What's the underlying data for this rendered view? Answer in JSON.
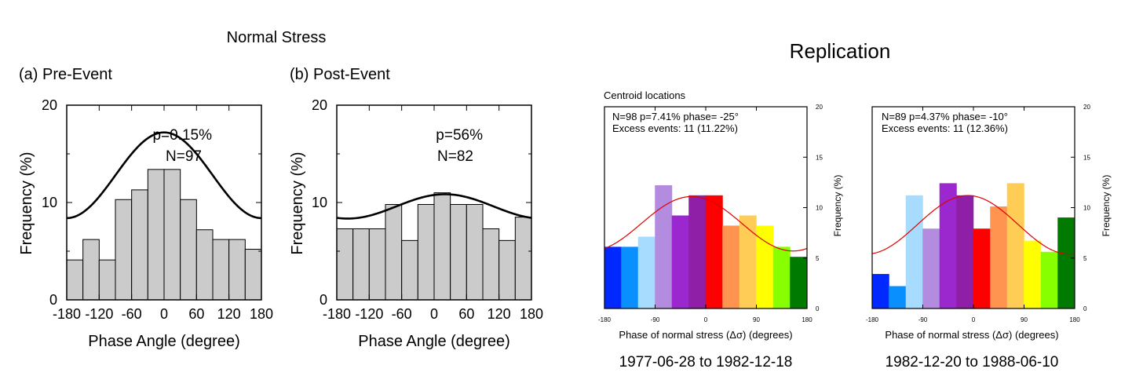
{
  "left_panel": {
    "title": "Normal Stress"
  },
  "right_panel": {
    "title": "Replication",
    "centroid_label": "Centroid locations"
  },
  "chart_data": [
    {
      "id": "a",
      "type": "bar",
      "subtitle": "(a) Pre-Event",
      "xlabel": "Phase Angle (degree)",
      "ylabel": "Frequency (%)",
      "xlim": [
        -180,
        180
      ],
      "ylim": [
        0,
        20
      ],
      "xticks": [
        "-180",
        "-120",
        "-60",
        "0",
        "60",
        "120",
        "180"
      ],
      "yticks": [
        "0",
        "10",
        "20"
      ],
      "bin_edges": [
        -180,
        -150,
        -120,
        -90,
        -60,
        -30,
        0,
        30,
        60,
        90,
        120,
        150,
        180
      ],
      "values": [
        4.1,
        6.2,
        4.1,
        10.3,
        11.3,
        13.4,
        13.4,
        10.3,
        7.2,
        6.2,
        6.2,
        5.2
      ],
      "fit": {
        "mean": 12.8,
        "amplitude": 4.4,
        "phase": 0
      },
      "annotations": [
        "p=0.15%",
        "N=97"
      ],
      "grid": false
    },
    {
      "id": "b",
      "type": "bar",
      "subtitle": "(b) Post-Event",
      "xlabel": "Phase Angle (degree)",
      "ylabel": "Frequency (%)",
      "xlim": [
        -180,
        180
      ],
      "ylim": [
        0,
        20
      ],
      "xticks": [
        "-180",
        "-120",
        "-60",
        "0",
        "60",
        "120",
        "180"
      ],
      "yticks": [
        "0",
        "10",
        "20"
      ],
      "bin_edges": [
        -180,
        -150,
        -120,
        -90,
        -60,
        -30,
        0,
        30,
        60,
        90,
        120,
        150,
        180
      ],
      "values": [
        7.3,
        7.3,
        7.3,
        9.8,
        6.1,
        9.8,
        11.0,
        9.8,
        9.8,
        7.3,
        6.1,
        8.5
      ],
      "fit": {
        "mean": 9.6,
        "amplitude": 1.25,
        "phase": 20
      },
      "annotations": [
        "p=56%",
        "N=82"
      ],
      "grid": false
    },
    {
      "id": "c",
      "type": "bar",
      "xlabel": "Phase of normal stress (Δσ) (degrees)",
      "ylabel": "Frequency (%)",
      "caption": "1977-06-28 to 1982-12-18",
      "annotation_line1": "N=98   p=7.41%   phase= -25°",
      "annotation_line2": "Excess events: 11 (11.22%)",
      "xlim": [
        -180,
        180
      ],
      "ylim": [
        0,
        20
      ],
      "xticks": [
        "-180",
        "-90",
        "0",
        "90",
        "180"
      ],
      "yticks": [
        "0",
        "5",
        "10",
        "15",
        "20"
      ],
      "bin_edges": [
        -180,
        -150,
        -120,
        -90,
        -60,
        -30,
        0,
        30,
        60,
        90,
        120,
        150,
        180
      ],
      "values": [
        6.1,
        6.1,
        7.1,
        12.2,
        9.2,
        11.2,
        11.2,
        8.2,
        9.2,
        8.2,
        6.1,
        5.1
      ],
      "colors": [
        "#0028ff",
        "#0a8fff",
        "#a8dcff",
        "#b38ce0",
        "#9b27cf",
        "#8e1fa6",
        "#ff0000",
        "#ff9450",
        "#ffcc55",
        "#ffff00",
        "#88ff00",
        "#007a00"
      ],
      "fit": {
        "mean": 8.4,
        "amplitude": 2.7,
        "phase": -25
      },
      "fit_color": "#e00000",
      "grid": false
    },
    {
      "id": "d",
      "type": "bar",
      "xlabel": "Phase of normal stress (Δσ) (degrees)",
      "ylabel": "Frequency (%)",
      "caption": "1982-12-20 to 1988-06-10",
      "annotation_line1": "N=89   p=4.37%   phase= -10°",
      "annotation_line2": "Excess events: 11 (12.36%)",
      "xlim": [
        -180,
        180
      ],
      "ylim": [
        0,
        20
      ],
      "xticks": [
        "-180",
        "-90",
        "0",
        "90",
        "180"
      ],
      "yticks": [
        "0",
        "5",
        "10",
        "15",
        "20"
      ],
      "bin_edges": [
        -180,
        -150,
        -120,
        -90,
        -60,
        -30,
        0,
        30,
        60,
        90,
        120,
        150,
        180
      ],
      "values": [
        3.4,
        2.2,
        11.2,
        7.9,
        12.4,
        11.2,
        7.9,
        10.1,
        12.4,
        6.7,
        5.6,
        9.0
      ],
      "colors": [
        "#0028ff",
        "#0a8fff",
        "#a8dcff",
        "#b38ce0",
        "#9b27cf",
        "#8e1fa6",
        "#ff0000",
        "#ff9450",
        "#ffcc55",
        "#ffff00",
        "#88ff00",
        "#007a00"
      ],
      "fit": {
        "mean": 8.3,
        "amplitude": 2.9,
        "phase": -10
      },
      "fit_color": "#e00000",
      "grid": false
    }
  ]
}
